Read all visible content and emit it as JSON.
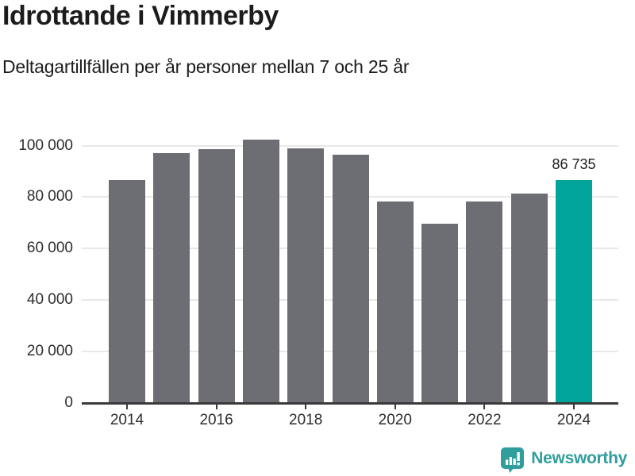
{
  "header": {
    "title": "Idrottande i Vimmerby",
    "subtitle": "Deltagartillfällen per år personer mellan 7 och 25 år"
  },
  "chart_data": {
    "type": "bar",
    "title": "Idrottande i Vimmerby",
    "subtitle": "Deltagartillfällen per år personer mellan 7 och 25 år",
    "categories": [
      "2014",
      "2015",
      "2016",
      "2017",
      "2018",
      "2019",
      "2020",
      "2021",
      "2022",
      "2023",
      "2024"
    ],
    "values": [
      86600,
      97000,
      98600,
      102300,
      99000,
      96600,
      78400,
      69500,
      78400,
      81400,
      86735
    ],
    "highlight": {
      "index": 10,
      "value": 86735,
      "label": "86 735",
      "color": "#00a49a"
    },
    "bar_color": "#6d6d74",
    "ylim": [
      0,
      104000
    ],
    "yticks": [
      0,
      20000,
      40000,
      60000,
      80000,
      100000
    ],
    "ytick_labels": [
      "0",
      "20 000",
      "40 000",
      "60 000",
      "80 000",
      "100 000"
    ],
    "xticks": [
      {
        "index": 0,
        "label": "2014"
      },
      {
        "index": 2,
        "label": "2016"
      },
      {
        "index": 4,
        "label": "2018"
      },
      {
        "index": 6,
        "label": "2020"
      },
      {
        "index": 8,
        "label": "2022"
      },
      {
        "index": 10,
        "label": "2024"
      }
    ],
    "grid": "horizontal",
    "legend": false,
    "colors": {
      "gridline": "#e8e8e8",
      "axis_line": "#3a3a3a",
      "tick_text": "#2e2e2e",
      "label_text": "#1d1d1d"
    }
  },
  "footer": {
    "brand": "Newsworthy",
    "brand_color": "#2f9e9c"
  }
}
